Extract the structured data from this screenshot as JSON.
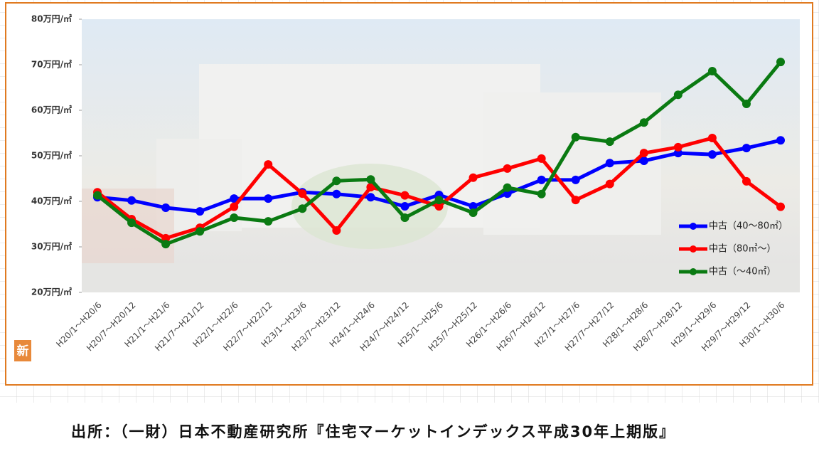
{
  "chart_data": {
    "type": "line",
    "categories": [
      "H20/1～H20/6",
      "H20/7～H20/12",
      "H21/1～H21/6",
      "H21/7～H21/12",
      "H22/1～H22/6",
      "H22/7～H22/12",
      "H23/1～H23/6",
      "H23/7～H23/12",
      "H24/1～H24/6",
      "H24/7～H24/12",
      "H25/1～H25/6",
      "H25/7～H25/12",
      "H26/1～H26/6",
      "H26/7～H26/12",
      "H27/1～H27/6",
      "H27/7～H27/12",
      "H28/1～H28/6",
      "H28/7～H28/12",
      "H29/1～H29/6",
      "H29/7～H29/12",
      "H30/1～H30/6"
    ],
    "series": [
      {
        "name": "中古（40～80㎡）",
        "color": "#0000ff",
        "values": [
          40.9,
          40.2,
          38.6,
          37.8,
          40.6,
          40.6,
          42.0,
          41.6,
          40.9,
          38.9,
          41.4,
          38.9,
          41.7,
          44.7,
          44.7,
          48.4,
          48.9,
          50.6,
          50.3,
          51.7,
          53.4
        ]
      },
      {
        "name": "中古（80㎡～）",
        "color": "#ff0000",
        "values": [
          42.0,
          36.1,
          31.9,
          34.2,
          38.8,
          48.1,
          41.7,
          33.6,
          43.1,
          41.3,
          38.9,
          45.2,
          47.2,
          49.4,
          40.3,
          43.8,
          50.6,
          51.9,
          53.9,
          44.4,
          38.8
        ]
      },
      {
        "name": "中古（～40㎡）",
        "color": "#0a7a12",
        "values": [
          41.3,
          35.3,
          30.6,
          33.4,
          36.4,
          35.6,
          38.4,
          44.5,
          44.8,
          36.4,
          40.3,
          37.5,
          43.0,
          41.6,
          54.1,
          53.1,
          57.3,
          63.4,
          68.6,
          61.4,
          70.6
        ]
      }
    ],
    "ylim": [
      20,
      80
    ],
    "yticks": [
      {
        "value": 20,
        "label": "20万円/㎡"
      },
      {
        "value": 30,
        "label": "30万円/㎡"
      },
      {
        "value": 40,
        "label": "40万円/㎡"
      },
      {
        "value": 50,
        "label": "50万円/㎡"
      },
      {
        "value": 60,
        "label": "60万円/㎡"
      },
      {
        "value": 70,
        "label": "70万円/㎡"
      },
      {
        "value": 80,
        "label": "80万円/㎡"
      }
    ],
    "legend": "lower-right"
  },
  "badge": "新",
  "source": "出所：（一財）日本不動産研究所『住宅マーケットインデックス平成30年上期版』"
}
